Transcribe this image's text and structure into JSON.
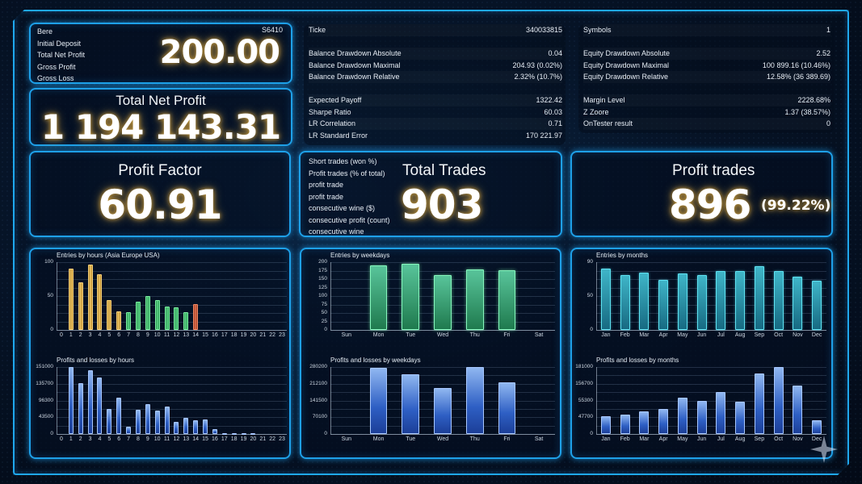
{
  "summary_panel": {
    "rows": [
      {
        "label": "Bere",
        "value": "S6410"
      },
      {
        "label": "Initial Deposit",
        "value": ""
      },
      {
        "label": "Total Net Profit",
        "value": ""
      },
      {
        "label": "Gross Profit",
        "value": ""
      },
      {
        "label": "Gross Loss",
        "value": ""
      }
    ],
    "big_value": "200.00"
  },
  "net_profit_panel": {
    "title": "Total Net Profit",
    "value": "1 194 143.31"
  },
  "profit_factor_panel": {
    "title": "Profit Factor",
    "value": "60.91"
  },
  "stats_middle": {
    "group1": [
      {
        "label": "Ticke",
        "value": "340033815"
      }
    ],
    "group2": [
      {
        "label": "Balance Drawdown Absolute",
        "value": "0.04"
      },
      {
        "label": "Balance Drawdown Maximal",
        "value": "204.93 (0.02%)"
      },
      {
        "label": "Balance Drawdown Relative",
        "value": "2.32% (10.7%)"
      }
    ],
    "group3": [
      {
        "label": "Expected Payoff",
        "value": "1322.42"
      },
      {
        "label": "Sharpe Ratio",
        "value": "60.03"
      },
      {
        "label": "LR Correlation",
        "value": "0.71"
      },
      {
        "label": "LR Standard Error",
        "value": "170 221.97"
      }
    ]
  },
  "stats_right": {
    "group1": [
      {
        "label": "Symbols",
        "value": "1"
      }
    ],
    "group2": [
      {
        "label": "Equity Drawdown Absolute",
        "value": "2.52"
      },
      {
        "label": "Equity Drawdown Maximal",
        "value": "100 899.16 (10.46%)"
      },
      {
        "label": "Equity Drawdown Relative",
        "value": "12.58% (36 389.69)"
      }
    ],
    "group3": [
      {
        "label": "Margin Level",
        "value": "2228.68%"
      },
      {
        "label": "Z Zoore",
        "value": "1.37 (38.57%)"
      },
      {
        "label": "OnTester result",
        "value": "0"
      }
    ]
  },
  "total_trades_panel": {
    "labels": [
      "Short trades (won %)",
      "Profit trades (% of total)",
      "profit trade",
      "profit trade",
      "consecutive wine ($)",
      "consecutive profit (count)",
      "consecutive wine"
    ],
    "title": "Total Trades",
    "value": "903"
  },
  "profit_trades_panel": {
    "title": "Profit trades",
    "value": "896",
    "percent": "(99.22%)"
  },
  "colors": {
    "frame": "#1ea0e8",
    "background": "#061428",
    "gold_bar": "#f5cd6a",
    "green_bar": "#5fd58a",
    "red_bar": "#e0704e",
    "blue_bar": "#4f7fe0",
    "cyan_bar": "#3fb5c8",
    "glow": "#c89a3a"
  },
  "chart_data": [
    {
      "id": "entries_hours",
      "type": "bar",
      "title": "Entries by hours (Asia Europe USA)",
      "categories": [
        "0",
        "1",
        "2",
        "3",
        "4",
        "5",
        "6",
        "7",
        "8",
        "9",
        "10",
        "11",
        "12",
        "13",
        "14",
        "15",
        "16",
        "17",
        "18",
        "19",
        "20",
        "21",
        "22",
        "23"
      ],
      "values": [
        0,
        90,
        70,
        97,
        82,
        44,
        27,
        26,
        42,
        50,
        44,
        34,
        33,
        26,
        38,
        0,
        0,
        0,
        0,
        0,
        0,
        0,
        0,
        0
      ],
      "bar_colors": [
        "gold",
        "gold",
        "gold",
        "gold",
        "gold",
        "gold",
        "gold",
        "green",
        "green",
        "green",
        "green",
        "green",
        "green",
        "green",
        "red",
        "gold",
        "gold",
        "gold",
        "gold",
        "gold",
        "gold",
        "gold",
        "gold",
        "gold"
      ],
      "yticks": [
        "100",
        "50",
        "0"
      ],
      "ylim": [
        0,
        100
      ],
      "xlabel": "",
      "ylabel": "",
      "grid": true
    },
    {
      "id": "pl_hours",
      "type": "bar",
      "title": "Profits and losses by hours",
      "categories": [
        "0",
        "1",
        "2",
        "3",
        "4",
        "5",
        "6",
        "7",
        "8",
        "9",
        "10",
        "11",
        "12",
        "13",
        "14",
        "15",
        "16",
        "17",
        "18",
        "19",
        "20",
        "21",
        "22",
        "23"
      ],
      "values": [
        0,
        151000,
        115000,
        143000,
        128000,
        57000,
        81000,
        16000,
        54000,
        67000,
        52000,
        61000,
        27000,
        36000,
        31000,
        32000,
        11000,
        2000,
        500,
        1000,
        2000,
        0,
        0,
        0
      ],
      "yticks": [
        "151000",
        "135700",
        "96300",
        "43500",
        "0"
      ],
      "ylim": [
        0,
        151000
      ],
      "xlabel": "",
      "ylabel": "",
      "grid": true
    },
    {
      "id": "entries_weekdays",
      "type": "bar",
      "title": "Entries by weekdays",
      "categories": [
        "Sun",
        "Mon",
        "Tue",
        "Wed",
        "Thu",
        "Fri",
        "Sat"
      ],
      "values": [
        0,
        190,
        195,
        163,
        178,
        176,
        0
      ],
      "yticks": [
        "200",
        "175",
        "150",
        "125",
        "100",
        "75",
        "50",
        "25",
        "0"
      ],
      "ylim": [
        0,
        200
      ],
      "xlabel": "",
      "ylabel": "",
      "grid": true
    },
    {
      "id": "pl_weekdays",
      "type": "bar",
      "title": "Profits and losses by weekdays",
      "categories": [
        "Sun",
        "Mon",
        "Tue",
        "Wed",
        "Thu",
        "Fri",
        "Sat"
      ],
      "values": [
        0,
        280000,
        252000,
        192000,
        282000,
        218000,
        0
      ],
      "yticks": [
        "280200",
        "212100",
        "141500",
        "70100",
        "0"
      ],
      "ylim": [
        0,
        282000
      ],
      "xlabel": "",
      "ylabel": "",
      "grid": true
    },
    {
      "id": "entries_months",
      "type": "bar",
      "title": "Entries by months",
      "categories": [
        "Jan",
        "Feb",
        "Mar",
        "Apr",
        "May",
        "Jun",
        "Jul",
        "Aug",
        "Sep",
        "Oct",
        "Nov",
        "Dec"
      ],
      "values": [
        90,
        81,
        84,
        74,
        83,
        81,
        87,
        87,
        94,
        87,
        79,
        73
      ],
      "yticks": [
        "90",
        "50",
        "0"
      ],
      "ylim": [
        0,
        100
      ],
      "xlabel": "",
      "ylabel": "",
      "grid": true
    },
    {
      "id": "pl_months",
      "type": "bar",
      "title": "Profits and losses by months",
      "categories": [
        "Jan",
        "Feb",
        "Mar",
        "Apr",
        "May",
        "Jun",
        "Jul",
        "Aug",
        "Sep",
        "Oct",
        "Nov",
        "Dec"
      ],
      "values": [
        48000,
        52000,
        62000,
        68000,
        98000,
        89000,
        114000,
        87000,
        163000,
        181000,
        130000,
        38000
      ],
      "yticks": [
        "181000",
        "156700",
        "55300",
        "47700",
        "0"
      ],
      "ylim": [
        0,
        181000
      ],
      "xlabel": "",
      "ylabel": "",
      "grid": true
    }
  ]
}
